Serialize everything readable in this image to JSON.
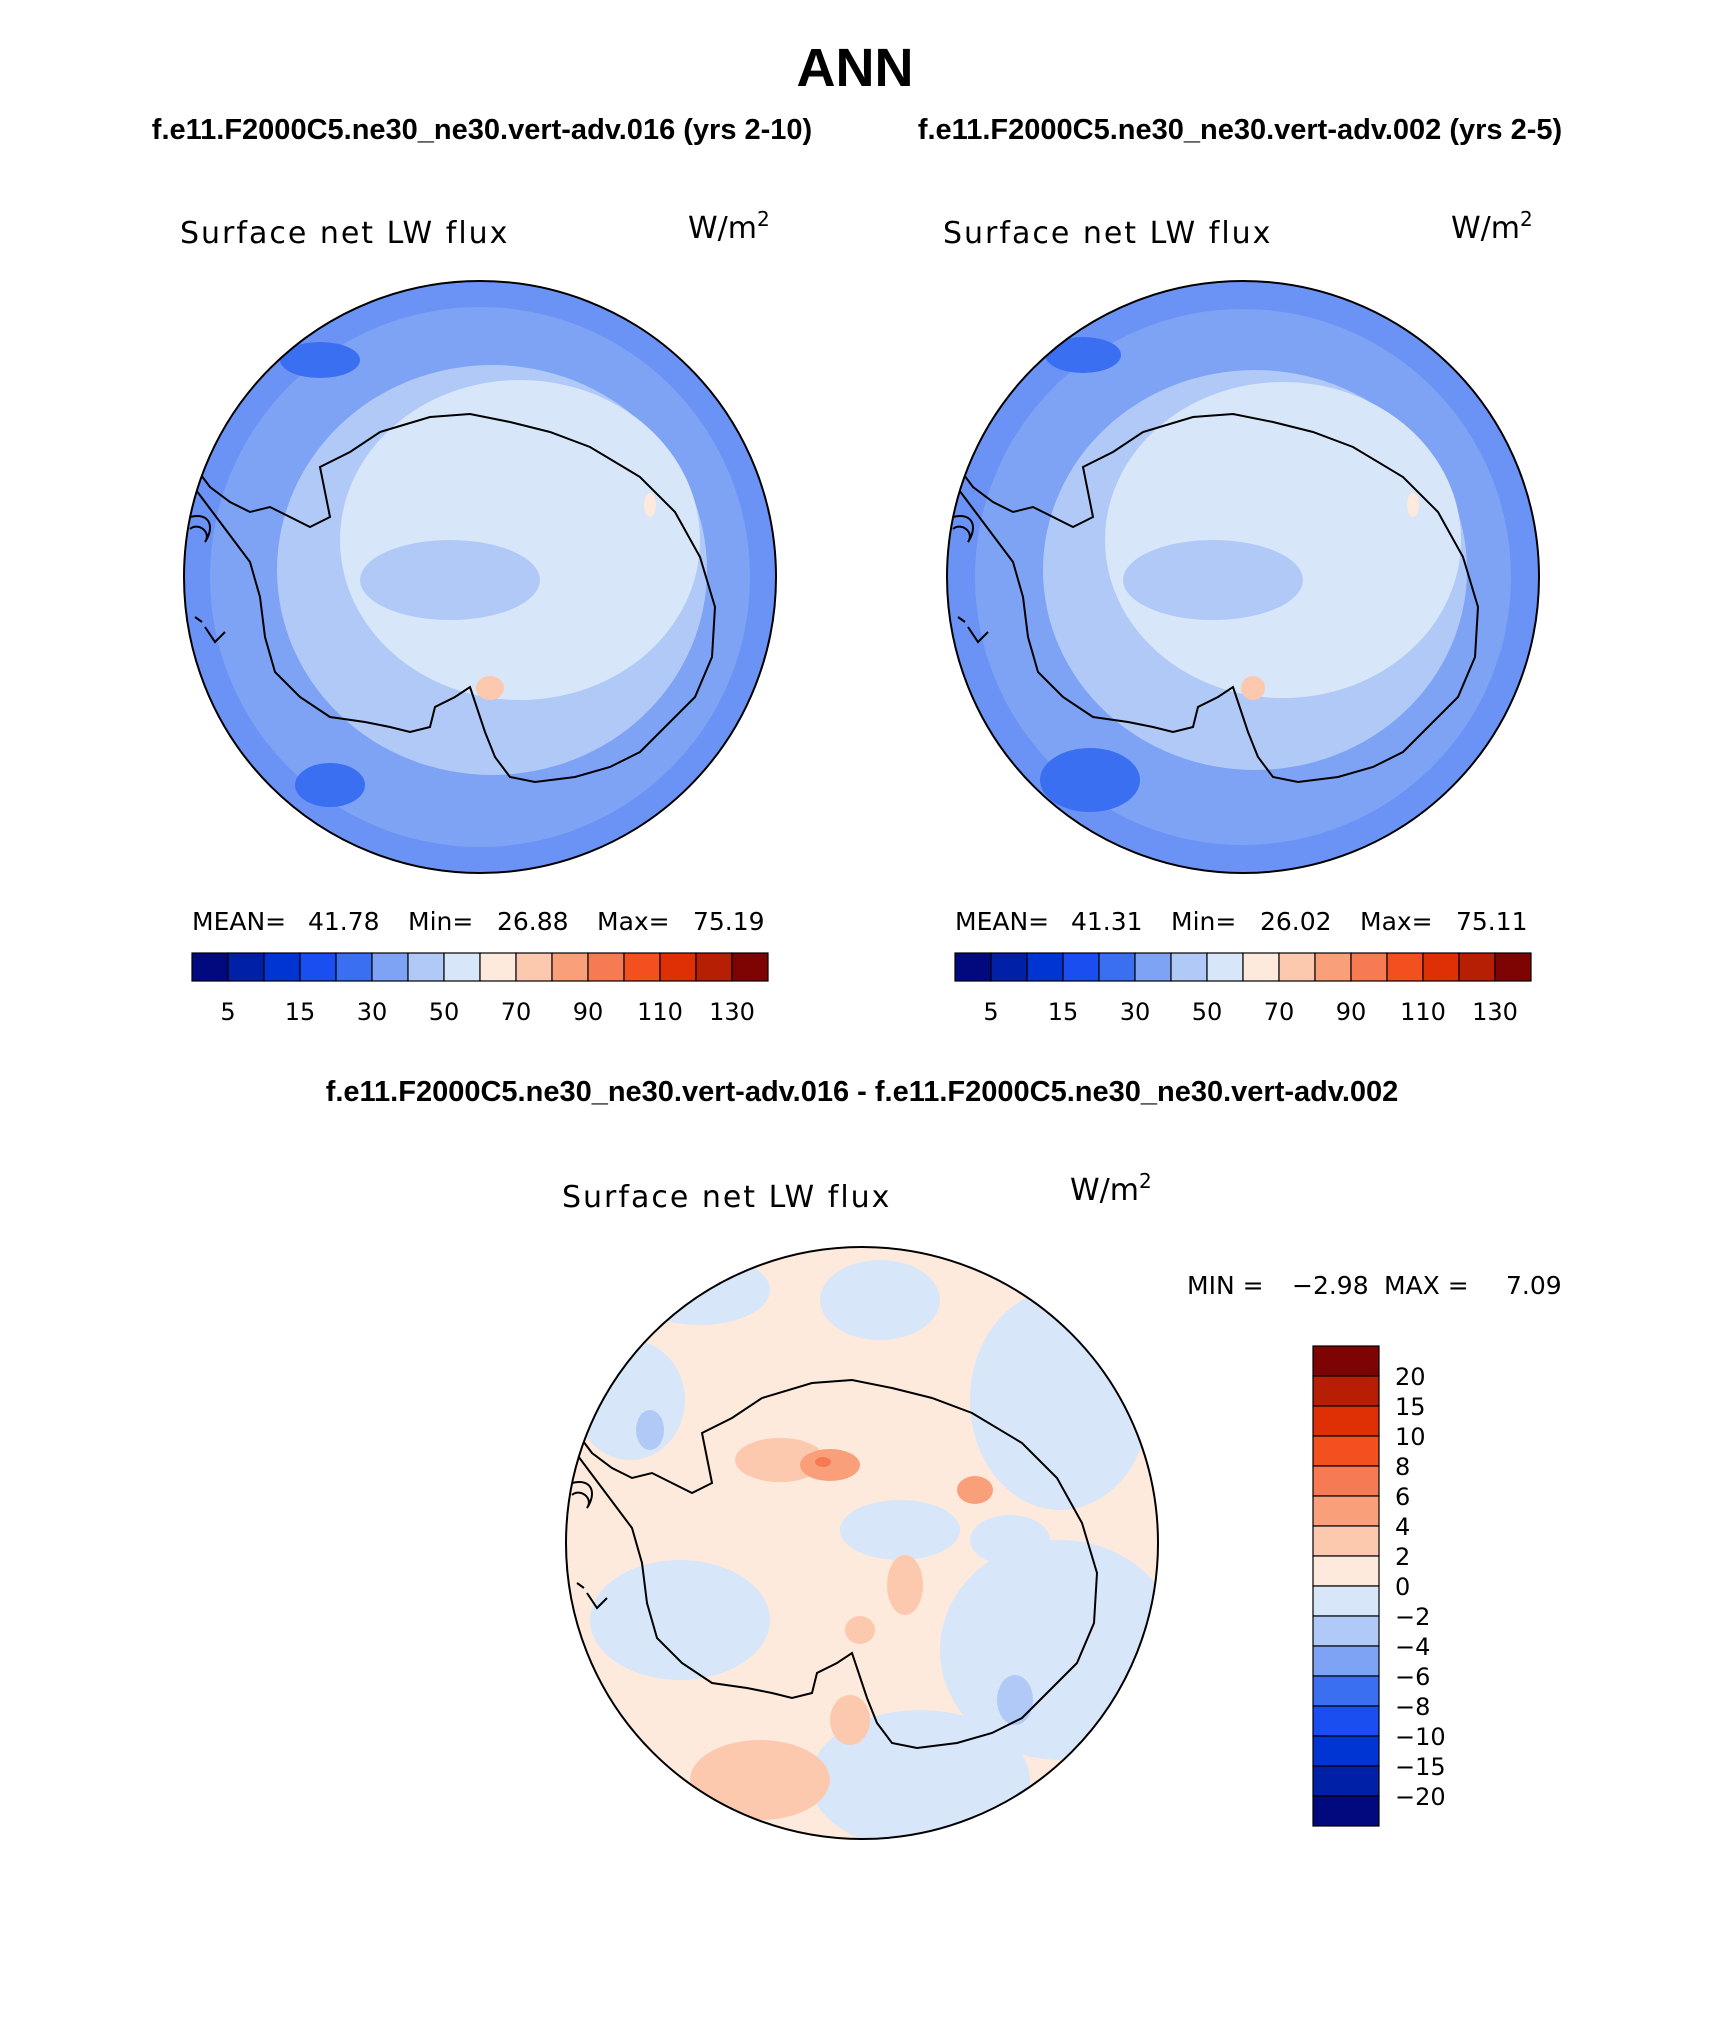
{
  "title": "ANN",
  "panels": [
    {
      "case_label": "f.e11.F2000C5.ne30_ne30.vert-adv.016 (yrs 2-10)",
      "field": "Surface net LW flux",
      "units_base": "W/m",
      "units_exp": "2",
      "stats": {
        "mean_label": "MEAN=",
        "mean": "41.78",
        "min_label": "Min=",
        "min": "26.88",
        "max_label": "Max=",
        "max": "75.19"
      }
    },
    {
      "case_label": "f.e11.F2000C5.ne30_ne30.vert-adv.002 (yrs 2-5)",
      "field": "Surface net LW flux",
      "units_base": "W/m",
      "units_exp": "2",
      "stats": {
        "mean_label": "MEAN=",
        "mean": "41.31",
        "min_label": "Min=",
        "min": "26.02",
        "max_label": "Max=",
        "max": "75.11"
      }
    }
  ],
  "abs_colorbar": {
    "colors": [
      "#000a7e",
      "#0020a8",
      "#0035d4",
      "#1a4ef0",
      "#3a6ff2",
      "#7ea3f4",
      "#b1c9f7",
      "#d8e6fa",
      "#fdeadc",
      "#fcc9ae",
      "#f9a07b",
      "#f77b52",
      "#f2501f",
      "#de3004",
      "#b71f04",
      "#7e0303"
    ],
    "labels": [
      "5",
      "15",
      "30",
      "50",
      "70",
      "90",
      "110",
      "130"
    ]
  },
  "diff": {
    "title": "f.e11.F2000C5.ne30_ne30.vert-adv.016 - f.e11.F2000C5.ne30_ne30.vert-adv.002",
    "field": "Surface net LW flux",
    "units_base": "W/m",
    "units_exp": "2",
    "min_label": "MIN =",
    "min": "−2.98",
    "max_label": "MAX =",
    "max": "7.09",
    "colorbar": {
      "colors": [
        "#7e0303",
        "#b71f04",
        "#de3004",
        "#f2501f",
        "#f77b52",
        "#f9a07b",
        "#fcc9ae",
        "#fdeadc",
        "#d8e6fa",
        "#b1c9f7",
        "#7ea3f4",
        "#3a6ff2",
        "#1a4ef0",
        "#0035d4",
        "#0020a8",
        "#000a7e"
      ],
      "labels": [
        "20",
        "15",
        "10",
        "8",
        "6",
        "4",
        "2",
        "0",
        "−2",
        "−4",
        "−6",
        "−8",
        "−10",
        "−15",
        "−20"
      ]
    }
  }
}
